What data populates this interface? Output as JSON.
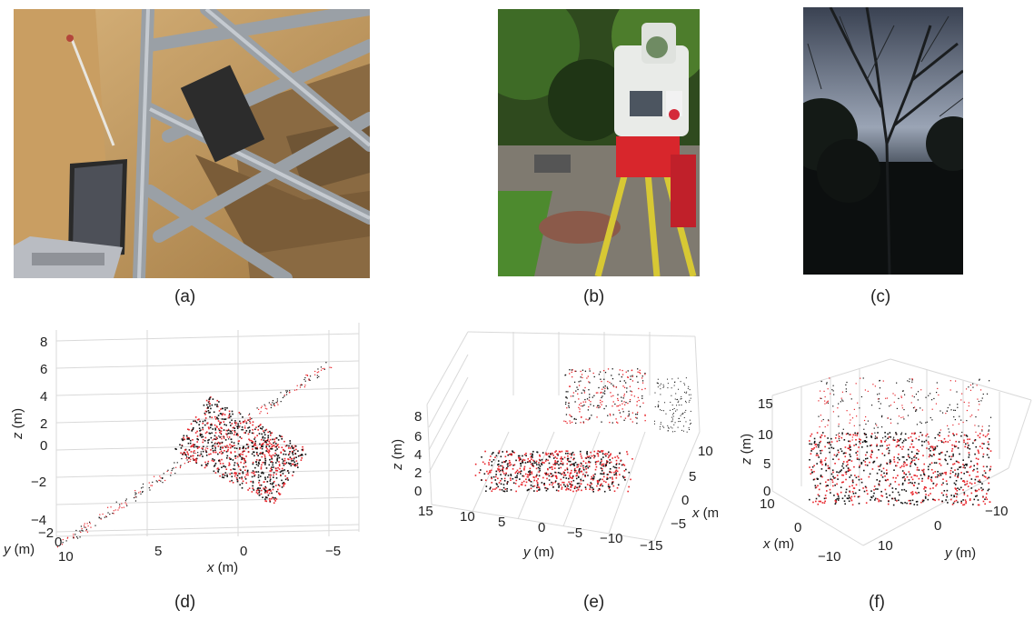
{
  "panels": {
    "a": {
      "label": "(a)",
      "scene": "sensor-rig-photo"
    },
    "b": {
      "label": "(b)",
      "scene": "total-station-photo"
    },
    "c": {
      "label": "(c)",
      "scene": "trees-sky-photo"
    },
    "d": {
      "label": "(d)",
      "z_axis": {
        "name": "z",
        "unit": " (m)",
        "ticks": [
          "8",
          "6",
          "4",
          "2",
          "0",
          "−2",
          "−4"
        ]
      },
      "y_axis": {
        "name": "y",
        "unit": " (m)",
        "ticks": [
          "−2",
          "0",
          "10"
        ]
      },
      "x_axis": {
        "name": "x",
        "unit": " (m)",
        "ticks": [
          "10",
          "5",
          "0",
          "−5"
        ]
      }
    },
    "e": {
      "label": "(e)",
      "z_axis": {
        "name": "z",
        "unit": " (m)",
        "ticks": [
          "8",
          "6",
          "4",
          "2",
          "0"
        ]
      },
      "y_axis": {
        "name": "y",
        "unit": " (m)",
        "ticks": [
          "15",
          "10",
          "5",
          "0",
          "−5",
          "−10",
          "−15"
        ]
      },
      "x_axis": {
        "name": "x",
        "unit": " (m)",
        "ticks": [
          "10",
          "5",
          "0",
          "−5"
        ]
      }
    },
    "f": {
      "label": "(f)",
      "z_axis": {
        "name": "z",
        "unit": " (m)",
        "ticks": [
          "15",
          "10",
          "5",
          "0"
        ]
      },
      "x_axis": {
        "name": "x",
        "unit": " (m)",
        "ticks": [
          "10",
          "0",
          "−10"
        ]
      },
      "y_axis": {
        "name": "y",
        "unit": " (m)",
        "ticks": [
          "10",
          "0",
          "−10"
        ]
      }
    }
  },
  "colors": {
    "points_primary": "#e8242a",
    "points_secondary": "#111111",
    "grid": "#d9d9d9"
  }
}
